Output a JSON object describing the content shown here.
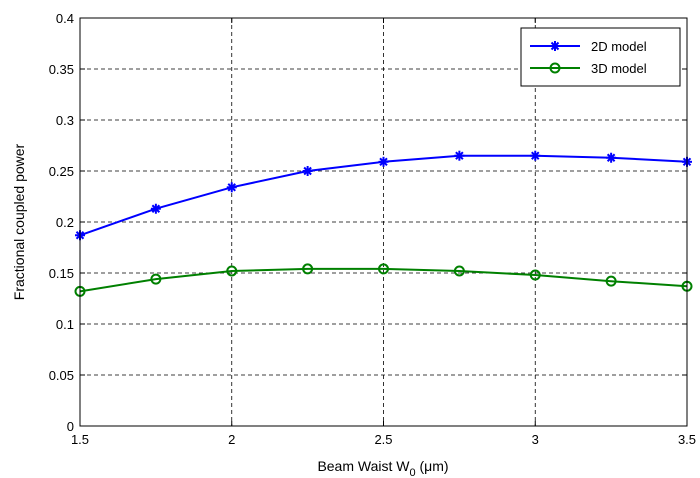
{
  "chart_data": {
    "type": "line",
    "title": "",
    "xlabel": "Beam Waist W",
    "xlabel_sub": "0",
    "xlabel_unit": " (μm)",
    "ylabel": "Fractional coupled power",
    "xlim": [
      1.5,
      3.5
    ],
    "ylim": [
      0,
      0.4
    ],
    "xticks": [
      1.5,
      2,
      2.5,
      3,
      3.5
    ],
    "xtick_labels": [
      "1.5",
      "2",
      "2.5",
      "3",
      "3.5"
    ],
    "yticks": [
      0,
      0.05,
      0.1,
      0.15,
      0.2,
      0.25,
      0.3,
      0.35,
      0.4
    ],
    "ytick_labels": [
      "0",
      "0.05",
      "0.1",
      "0.15",
      "0.2",
      "0.25",
      "0.3",
      "0.35",
      "0.4"
    ],
    "grid": true,
    "legend_position": "top-right",
    "x": [
      1.5,
      1.75,
      2.0,
      2.25,
      2.5,
      2.75,
      3.0,
      3.25,
      3.5
    ],
    "series": [
      {
        "name": "2D model",
        "color": "#0000ff",
        "marker": "star",
        "values": [
          0.187,
          0.213,
          0.234,
          0.25,
          0.259,
          0.265,
          0.265,
          0.263,
          0.259
        ]
      },
      {
        "name": "3D model",
        "color": "#008000",
        "marker": "circle",
        "values": [
          0.132,
          0.144,
          0.152,
          0.154,
          0.154,
          0.152,
          0.148,
          0.142,
          0.137
        ]
      }
    ]
  }
}
